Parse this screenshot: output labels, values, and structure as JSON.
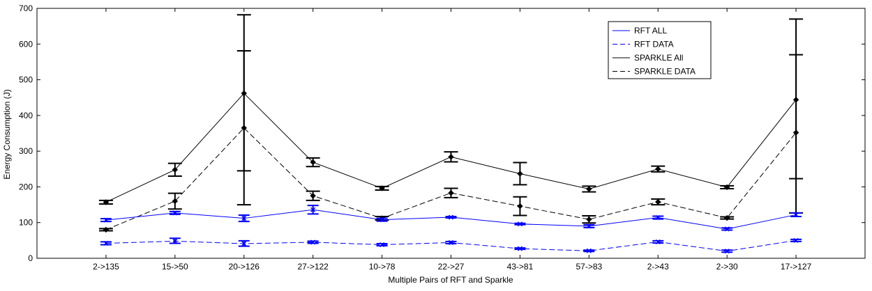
{
  "colors": {
    "rft": "#0000ff",
    "sparkle": "#000000",
    "axis": "#000000",
    "background": "#ffffff"
  },
  "chart_data": {
    "type": "line",
    "title": "",
    "xlabel": "Multiple Pairs of RFT and Sparkle",
    "ylabel": "Energy Consumption (J)",
    "ylim": [
      0,
      700
    ],
    "yticks": [
      0,
      100,
      200,
      300,
      400,
      500,
      600,
      700
    ],
    "grid": false,
    "legend_position": "top-right",
    "categories": [
      "2->135",
      "15->50",
      "20->126",
      "27->122",
      "10->78",
      "22->27",
      "43->81",
      "57->83",
      "2->43",
      "2->30",
      "17->127"
    ],
    "series": [
      {
        "name": "RFT ALL",
        "color": "#0000ff",
        "dash": false,
        "marker": "x",
        "values": [
          107,
          127,
          112,
          136,
          108,
          115,
          96,
          90,
          114,
          82,
          122
        ],
        "err_low": [
          103,
          123,
          103,
          124,
          104,
          113,
          94,
          86,
          110,
          79,
          117
        ],
        "err_high": [
          111,
          131,
          121,
          148,
          112,
          117,
          98,
          94,
          118,
          85,
          127
        ]
      },
      {
        "name": "RFT DATA",
        "color": "#0000ff",
        "dash": true,
        "marker": "x",
        "values": [
          42,
          48,
          41,
          45,
          38,
          44,
          27,
          21,
          46,
          20,
          50
        ],
        "err_low": [
          38,
          42,
          34,
          42,
          35,
          41,
          25,
          19,
          43,
          17,
          47
        ],
        "err_high": [
          46,
          56,
          49,
          48,
          41,
          47,
          29,
          23,
          49,
          23,
          53
        ]
      },
      {
        "name": "SPARKLE All",
        "color": "#000000",
        "dash": false,
        "marker": "diamond",
        "values": [
          157,
          248,
          462,
          269,
          196,
          284,
          237,
          194,
          250,
          199,
          444
        ],
        "err_low": [
          152,
          230,
          245,
          257,
          191,
          270,
          206,
          186,
          242,
          195,
          127
        ],
        "err_high": [
          162,
          266,
          682,
          281,
          201,
          298,
          268,
          202,
          258,
          203,
          670
        ]
      },
      {
        "name": "SPARKLE DATA",
        "color": "#000000",
        "dash": true,
        "marker": "diamond",
        "values": [
          80,
          160,
          365,
          175,
          112,
          183,
          146,
          109,
          158,
          113,
          352
        ],
        "err_low": [
          77,
          138,
          150,
          162,
          107,
          170,
          120,
          99,
          150,
          110,
          223
        ],
        "err_high": [
          83,
          182,
          581,
          188,
          117,
          196,
          172,
          119,
          166,
          116,
          570
        ]
      }
    ]
  }
}
